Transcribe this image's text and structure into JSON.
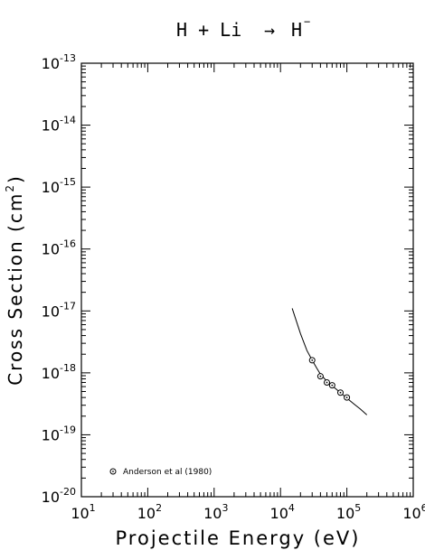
{
  "chart_data": {
    "type": "scatter",
    "title": {
      "lhs": "H + Li",
      "arrow": "→",
      "rhs_base": "H",
      "rhs_sup": "−"
    },
    "xlabel": "Projectile Energy (eV)",
    "ylabel": {
      "before": "Cross Section (cm",
      "sup": "2",
      "after": ")"
    },
    "x_scale": "log",
    "y_scale": "log",
    "xlim": [
      10,
      1000000
    ],
    "ylim": [
      1e-20,
      1e-13
    ],
    "x_ticks": [
      {
        "value": 10,
        "base": "10",
        "exp": "1"
      },
      {
        "value": 100,
        "base": "10",
        "exp": "2"
      },
      {
        "value": 1000,
        "base": "10",
        "exp": "3"
      },
      {
        "value": 10000,
        "base": "10",
        "exp": "4"
      },
      {
        "value": 100000,
        "base": "10",
        "exp": "5"
      },
      {
        "value": 1000000,
        "base": "10",
        "exp": "6"
      }
    ],
    "y_ticks": [
      {
        "value": 1e-20,
        "base": "10",
        "exp": "-20"
      },
      {
        "value": 1e-19,
        "base": "10",
        "exp": "-19"
      },
      {
        "value": 1e-18,
        "base": "10",
        "exp": "-18"
      },
      {
        "value": 1e-17,
        "base": "10",
        "exp": "-17"
      },
      {
        "value": 1e-16,
        "base": "10",
        "exp": "-16"
      },
      {
        "value": 1e-15,
        "base": "10",
        "exp": "-15"
      },
      {
        "value": 1e-14,
        "base": "10",
        "exp": "-14"
      },
      {
        "value": 1e-13,
        "base": "10",
        "exp": "-13"
      }
    ],
    "grid": false,
    "fit_curve": {
      "x": [
        15000,
        20000,
        25000,
        30000,
        35000,
        40000,
        50000,
        60000,
        70000,
        80000,
        100000,
        130000,
        160000,
        200000
      ],
      "y": [
        1.1e-17,
        4.3e-18,
        2.3e-18,
        1.6e-18,
        1.2e-18,
        9.5e-19,
        7.3e-19,
        6.2e-19,
        5.4e-19,
        4.8e-19,
        3.9e-19,
        3.1e-19,
        2.6e-19,
        2.1e-19
      ]
    },
    "series": [
      {
        "name": "Anderson et al (1980)",
        "marker": "circled-dot",
        "x": [
          30000,
          40000,
          50000,
          60000,
          80000,
          100000
        ],
        "y": [
          1.6e-18,
          8.8e-19,
          7e-19,
          6.3e-19,
          4.8e-19,
          4e-19
        ]
      }
    ],
    "legend_position": "bottom-left"
  }
}
